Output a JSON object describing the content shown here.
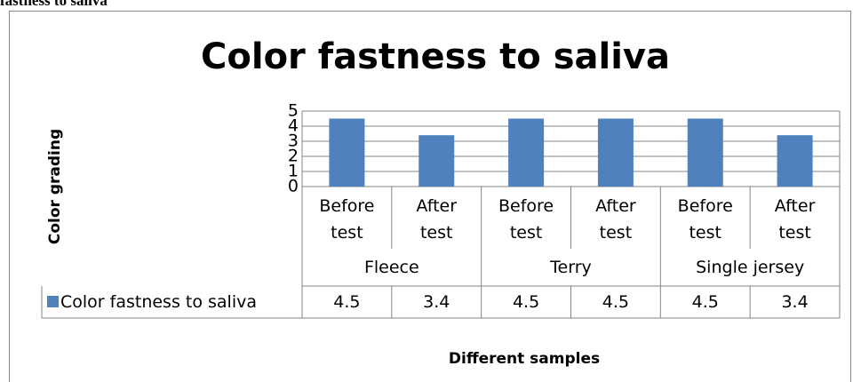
{
  "caption": "fastness to saliva",
  "chart_data": {
    "type": "bar",
    "title": "Color fastness to saliva",
    "y_label": "Color grading",
    "x_label": "Different samples",
    "category_groups": [
      {
        "label": "Fleece",
        "categories": [
          "Before test",
          "After test"
        ]
      },
      {
        "label": "Terry",
        "categories": [
          "Before test",
          "After test"
        ]
      },
      {
        "label": "Single jersey",
        "categories": [
          "Before test",
          "After test"
        ]
      }
    ],
    "series": [
      {
        "name": "Color fastness to saliva",
        "color": "#4f81bd",
        "values": [
          4.5,
          3.4,
          4.5,
          4.5,
          4.5,
          3.4
        ]
      }
    ],
    "ylim": [
      0,
      5
    ],
    "yticks": [
      0,
      1,
      2,
      3,
      4,
      5
    ],
    "grid": true,
    "data_table": true
  }
}
